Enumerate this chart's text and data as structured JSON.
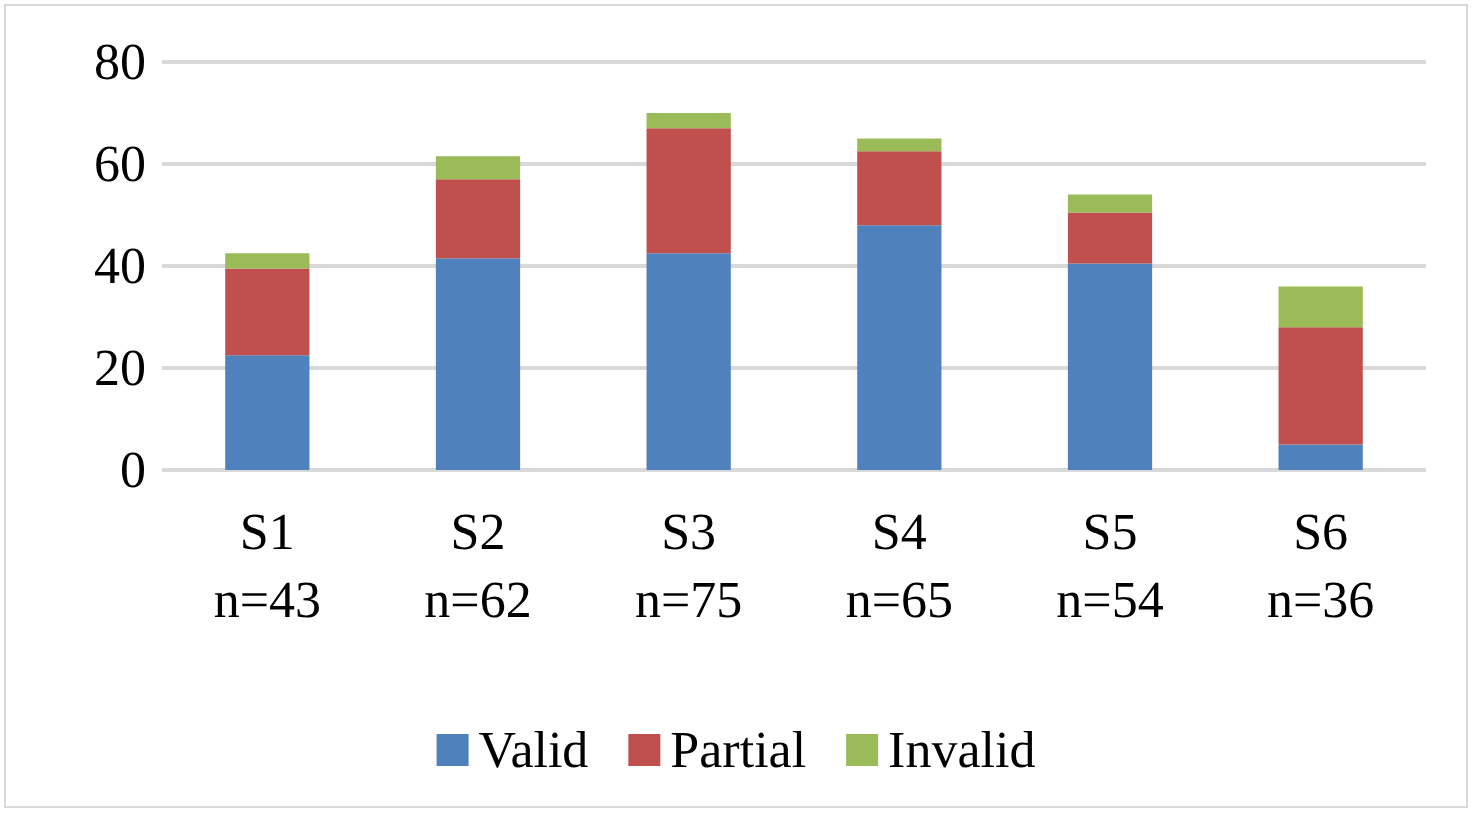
{
  "chart_data": {
    "type": "bar",
    "stacked": true,
    "categories": [
      "S1\nn=43",
      "S2\nn=62",
      "S3\nn=75",
      "S4\nn=65",
      "S5\nn=54",
      "S6\nn=36"
    ],
    "series": [
      {
        "name": "Valid",
        "color": "#4f81bd",
        "values": [
          22.5,
          41.5,
          42.5,
          48,
          40.5,
          5
        ]
      },
      {
        "name": "Partial",
        "color": "#c0504d",
        "values": [
          17,
          15.5,
          24.5,
          14.5,
          10,
          23
        ]
      },
      {
        "name": "Invalid",
        "color": "#9bbb59",
        "values": [
          3,
          4.5,
          3,
          2.5,
          3.5,
          8
        ]
      }
    ],
    "ylim": [
      0,
      80
    ],
    "yticks": [
      0,
      20,
      40,
      60,
      80
    ],
    "grid": "y",
    "legend": "bottom"
  }
}
